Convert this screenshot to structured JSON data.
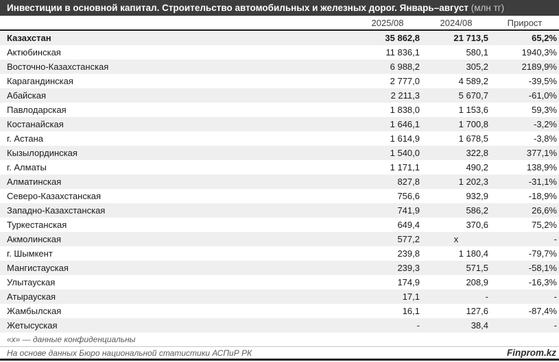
{
  "title": {
    "main": "Инвестиции в основной капитал. Строительство автомобильных и железных дорог. Январь–август ",
    "unit": "(млн тг)"
  },
  "chart_data": {
    "type": "table",
    "title": "Инвестиции в основной капитал. Строительство автомобильных и железных дорог. Январь–август (млн тг)",
    "columns": [
      "2025/08",
      "2024/08",
      "Прирост"
    ],
    "rows": [
      {
        "region": "Казахстан",
        "v2025": "35 862,8",
        "v2024": "21 713,5",
        "growth": "65,2%",
        "total": true
      },
      {
        "region": "Актюбинская",
        "v2025": "11 836,1",
        "v2024": "580,1",
        "growth": "1940,3%"
      },
      {
        "region": "Восточно-Казахстанская",
        "v2025": "6 988,2",
        "v2024": "305,2",
        "growth": "2189,9%"
      },
      {
        "region": "Карагандинская",
        "v2025": "2 777,0",
        "v2024": "4 589,2",
        "growth": "-39,5%"
      },
      {
        "region": "Абайская",
        "v2025": "2 211,3",
        "v2024": "5 670,7",
        "growth": "-61,0%"
      },
      {
        "region": "Павлодарская",
        "v2025": "1 838,0",
        "v2024": "1 153,6",
        "growth": "59,3%"
      },
      {
        "region": "Костанайская",
        "v2025": "1 646,1",
        "v2024": "1 700,8",
        "growth": "-3,2%"
      },
      {
        "region": "г. Астана",
        "v2025": "1 614,9",
        "v2024": "1 678,5",
        "growth": "-3,8%"
      },
      {
        "region": "Кызылординская",
        "v2025": "1 540,0",
        "v2024": "322,8",
        "growth": "377,1%"
      },
      {
        "region": "г. Алматы",
        "v2025": "1 171,1",
        "v2024": "490,2",
        "growth": "138,9%"
      },
      {
        "region": "Алматинская",
        "v2025": "827,8",
        "v2024": "1 202,3",
        "growth": "-31,1%"
      },
      {
        "region": "Северо-Казахстанская",
        "v2025": "756,6",
        "v2024": "932,9",
        "growth": "-18,9%"
      },
      {
        "region": "Западно-Казахстанская",
        "v2025": "741,9",
        "v2024": "586,2",
        "growth": "26,6%"
      },
      {
        "region": "Туркестанская",
        "v2025": "649,4",
        "v2024": "370,6",
        "growth": "75,2%"
      },
      {
        "region": "Акмолинская",
        "v2025": "577,2",
        "v2024": "x",
        "growth": "-"
      },
      {
        "region": "г. Шымкент",
        "v2025": "239,8",
        "v2024": "1 180,4",
        "growth": "-79,7%"
      },
      {
        "region": "Мангистауская",
        "v2025": "239,3",
        "v2024": "571,5",
        "growth": "-58,1%"
      },
      {
        "region": "Улытауская",
        "v2025": "174,9",
        "v2024": "208,9",
        "growth": "-16,3%"
      },
      {
        "region": "Атырауская",
        "v2025": "17,1",
        "v2024": "-",
        "growth": "-"
      },
      {
        "region": "Жамбылская",
        "v2025": "16,1",
        "v2024": "127,6",
        "growth": "-87,4%"
      },
      {
        "region": "Жетысуская",
        "v2025": "-",
        "v2024": "38,4",
        "growth": "-"
      }
    ]
  },
  "footnote": "«х» — данные конфиденциальны",
  "footer": {
    "source": "На основе данных Бюро национальной статистики АСПиР РК",
    "brand": "Finprom.kz"
  },
  "colors": {
    "title_bar_bg": "#3d3d3d",
    "title_text": "#ffffff",
    "unit_text": "#c9c9c9",
    "row_alt_bg": "#efefef",
    "text": "#1a1a1a",
    "muted_text": "#595959",
    "header_border": "#1a1a1a",
    "divider": "#c6c6c6"
  }
}
